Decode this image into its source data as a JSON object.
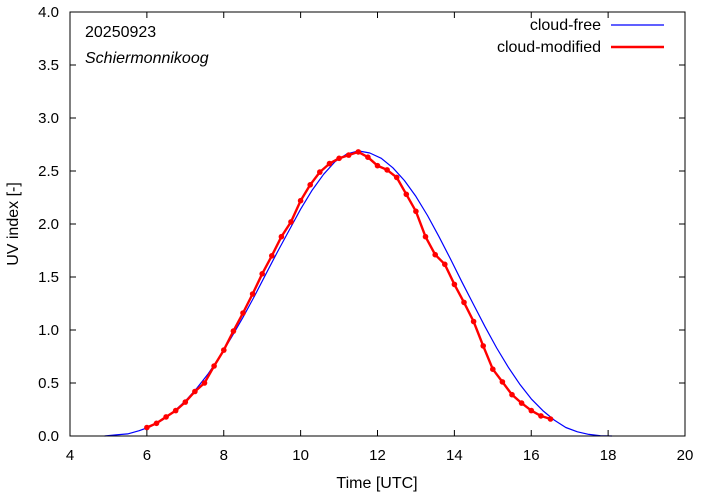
{
  "chart_data": {
    "type": "line",
    "title": "",
    "annotations": {
      "date": "20250923",
      "location": "Schiermonnikoog"
    },
    "xlabel": "Time  [UTC]",
    "ylabel": "UV index  [-]",
    "xlim": [
      4,
      20
    ],
    "ylim": [
      0.0,
      4.0
    ],
    "x_ticks": [
      4,
      6,
      8,
      10,
      12,
      14,
      16,
      18,
      20
    ],
    "x_tick_labels": [
      "4",
      "6",
      "8",
      "10",
      "12",
      "14",
      "16",
      "18",
      "20"
    ],
    "y_ticks": [
      0.0,
      0.5,
      1.0,
      1.5,
      2.0,
      2.5,
      3.0,
      3.5,
      4.0
    ],
    "y_tick_labels": [
      "0.0",
      "0.5",
      "1.0",
      "1.5",
      "2.0",
      "2.5",
      "3.0",
      "3.5",
      "4.0"
    ],
    "legend_position": "top-right",
    "series": [
      {
        "name": "cloud-free",
        "color": "#0000ff",
        "markers": false,
        "x": [
          4.9,
          5.2,
          5.5,
          5.8,
          6.1,
          6.4,
          6.7,
          7.0,
          7.3,
          7.6,
          7.9,
          8.2,
          8.5,
          8.8,
          9.1,
          9.4,
          9.7,
          10.0,
          10.3,
          10.6,
          10.9,
          11.2,
          11.5,
          11.8,
          12.1,
          12.4,
          12.7,
          13.0,
          13.3,
          13.6,
          13.9,
          14.2,
          14.5,
          14.8,
          15.1,
          15.4,
          15.7,
          16.0,
          16.3,
          16.6,
          16.9,
          17.2,
          17.5,
          17.8,
          18.1
        ],
        "y": [
          0.0,
          0.01,
          0.02,
          0.05,
          0.09,
          0.15,
          0.23,
          0.33,
          0.45,
          0.59,
          0.75,
          0.93,
          1.12,
          1.32,
          1.53,
          1.74,
          1.94,
          2.14,
          2.32,
          2.47,
          2.59,
          2.66,
          2.69,
          2.67,
          2.62,
          2.53,
          2.41,
          2.26,
          2.08,
          1.88,
          1.67,
          1.45,
          1.24,
          1.03,
          0.83,
          0.65,
          0.49,
          0.35,
          0.24,
          0.15,
          0.08,
          0.04,
          0.015,
          0.003,
          0.0
        ]
      },
      {
        "name": "cloud-modified",
        "color": "#ff0000",
        "markers": true,
        "x": [
          6.0,
          6.25,
          6.5,
          6.75,
          7.0,
          7.25,
          7.5,
          7.75,
          8.0,
          8.25,
          8.5,
          8.75,
          9.0,
          9.25,
          9.5,
          9.75,
          10.0,
          10.25,
          10.5,
          10.75,
          11.0,
          11.25,
          11.5,
          11.75,
          12.0,
          12.25,
          12.5,
          12.75,
          13.0,
          13.25,
          13.5,
          13.75,
          14.0,
          14.25,
          14.5,
          14.75,
          15.0,
          15.25,
          15.5,
          15.75,
          16.0,
          16.25,
          16.5
        ],
        "y": [
          0.08,
          0.12,
          0.18,
          0.24,
          0.32,
          0.42,
          0.5,
          0.66,
          0.81,
          0.99,
          1.16,
          1.34,
          1.53,
          1.7,
          1.88,
          2.02,
          2.22,
          2.37,
          2.49,
          2.57,
          2.62,
          2.65,
          2.68,
          2.63,
          2.55,
          2.51,
          2.44,
          2.28,
          2.12,
          1.88,
          1.71,
          1.62,
          1.43,
          1.26,
          1.08,
          0.85,
          0.63,
          0.51,
          0.39,
          0.31,
          0.24,
          0.19,
          0.16
        ]
      }
    ]
  }
}
